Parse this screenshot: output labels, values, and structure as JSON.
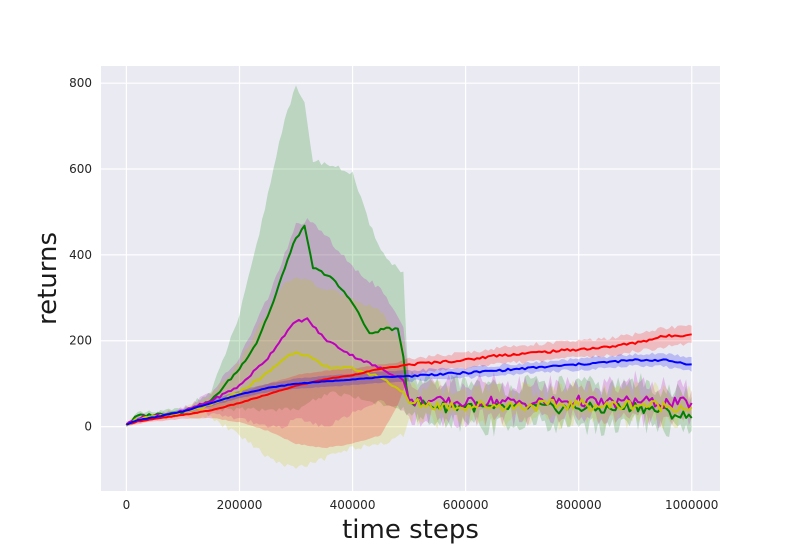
{
  "chart_data": {
    "type": "line",
    "title": "",
    "xlabel": "time steps",
    "ylabel": "returns",
    "xlim": [
      -45000,
      1050000
    ],
    "ylim": [
      -150,
      840
    ],
    "xticks": [
      0,
      200000,
      400000,
      600000,
      800000,
      1000000
    ],
    "xtick_labels": [
      "0",
      "200000",
      "400000",
      "600000",
      "800000",
      "1000000"
    ],
    "yticks": [
      0,
      200,
      400,
      600,
      800
    ],
    "ytick_labels": [
      "0",
      "200",
      "400",
      "600",
      "800"
    ],
    "grid": true,
    "legend": "none",
    "style": {
      "background": "#EAEAF2",
      "grid_color": "#ffffff"
    },
    "series": [
      {
        "color": "#008000",
        "x": [
          0,
          20000,
          50000,
          100000,
          150000,
          200000,
          230000,
          260000,
          280000,
          300000,
          315000,
          330000,
          360000,
          400000,
          430000,
          460000,
          480000,
          490000,
          495000,
          500000,
          520000,
          560000,
          600000,
          650000,
          700000,
          750000,
          800000,
          850000,
          900000,
          950000,
          1000000
        ],
        "y": [
          5,
          25,
          28,
          35,
          60,
          135,
          195,
          290,
          370,
          440,
          465,
          370,
          350,
          290,
          215,
          230,
          225,
          165,
          95,
          60,
          55,
          45,
          50,
          40,
          48,
          42,
          45,
          40,
          48,
          35,
          20
        ],
        "band_upper": [
          10,
          30,
          33,
          42,
          80,
          260,
          420,
          600,
          720,
          790,
          750,
          620,
          610,
          590,
          470,
          390,
          370,
          360,
          200,
          110,
          100,
          95,
          110,
          90,
          100,
          95,
          100,
          90,
          105,
          90,
          70
        ],
        "band_lower": [
          0,
          20,
          23,
          28,
          40,
          40,
          40,
          40,
          40,
          40,
          50,
          60,
          80,
          70,
          60,
          50,
          45,
          40,
          30,
          30,
          20,
          0,
          10,
          0,
          10,
          5,
          5,
          0,
          10,
          0,
          -10
        ]
      },
      {
        "color": "#BF00BF",
        "x": [
          0,
          20000,
          50000,
          100000,
          150000,
          200000,
          250000,
          280000,
          300000,
          320000,
          350000,
          400000,
          450000,
          490000,
          500000,
          550000,
          600000,
          650000,
          700000,
          750000,
          800000,
          850000,
          900000,
          950000,
          1000000
        ],
        "y": [
          5,
          20,
          25,
          35,
          60,
          95,
          160,
          215,
          245,
          250,
          205,
          165,
          135,
          110,
          60,
          58,
          55,
          60,
          55,
          58,
          60,
          55,
          60,
          55,
          55
        ],
        "band_upper": [
          10,
          26,
          31,
          42,
          80,
          160,
          300,
          400,
          470,
          480,
          450,
          370,
          320,
          230,
          110,
          100,
          95,
          105,
          95,
          100,
          100,
          95,
          110,
          95,
          85
        ],
        "band_lower": [
          0,
          14,
          19,
          28,
          30,
          20,
          0,
          0,
          20,
          10,
          0,
          30,
          60,
          40,
          20,
          20,
          20,
          25,
          20,
          20,
          25,
          20,
          20,
          20,
          20
        ]
      },
      {
        "color": "#C8C800",
        "x": [
          0,
          20000,
          50000,
          100000,
          150000,
          200000,
          250000,
          280000,
          300000,
          320000,
          350000,
          400000,
          450000,
          490000,
          500000,
          550000,
          600000,
          650000,
          700000,
          750000,
          800000,
          850000,
          900000,
          950000,
          1000000
        ],
        "y": [
          5,
          18,
          22,
          32,
          50,
          80,
          125,
          160,
          175,
          165,
          140,
          135,
          115,
          80,
          55,
          50,
          48,
          50,
          48,
          50,
          52,
          48,
          52,
          48,
          45
        ],
        "band_upper": [
          10,
          24,
          28,
          40,
          75,
          150,
          270,
          330,
          350,
          340,
          320,
          300,
          270,
          190,
          90,
          85,
          80,
          85,
          80,
          85,
          85,
          80,
          85,
          80,
          75
        ],
        "band_lower": [
          0,
          12,
          16,
          24,
          20,
          -20,
          -70,
          -90,
          -95,
          -90,
          -75,
          -50,
          -40,
          -20,
          20,
          15,
          15,
          15,
          15,
          15,
          15,
          15,
          15,
          15,
          15
        ]
      },
      {
        "color": "#FF0000",
        "x": [
          0,
          20000,
          50000,
          100000,
          150000,
          200000,
          250000,
          300000,
          350000,
          400000,
          450000,
          480000,
          500000,
          550000,
          600000,
          650000,
          700000,
          750000,
          800000,
          850000,
          900000,
          950000,
          1000000
        ],
        "y": [
          5,
          12,
          18,
          27,
          38,
          55,
          75,
          95,
          110,
          120,
          135,
          140,
          145,
          150,
          155,
          165,
          170,
          175,
          180,
          185,
          195,
          210,
          215
        ],
        "band_upper": [
          10,
          18,
          24,
          35,
          55,
          80,
          100,
          120,
          130,
          135,
          145,
          150,
          160,
          165,
          172,
          182,
          190,
          195,
          200,
          205,
          215,
          230,
          235
        ],
        "band_lower": [
          0,
          6,
          12,
          18,
          20,
          10,
          -10,
          -40,
          -50,
          -40,
          -20,
          50,
          120,
          130,
          135,
          145,
          150,
          155,
          160,
          165,
          175,
          185,
          195
        ]
      },
      {
        "color": "#0000FF",
        "x": [
          0,
          20000,
          50000,
          100000,
          150000,
          200000,
          250000,
          300000,
          350000,
          400000,
          450000,
          500000,
          550000,
          600000,
          650000,
          700000,
          750000,
          800000,
          850000,
          900000,
          950000,
          1000000
        ],
        "y": [
          5,
          15,
          22,
          35,
          55,
          75,
          90,
          100,
          105,
          110,
          115,
          118,
          122,
          125,
          130,
          135,
          140,
          145,
          150,
          155,
          155,
          145
        ],
        "band_upper": [
          8,
          18,
          26,
          40,
          62,
          84,
          100,
          112,
          118,
          123,
          128,
          131,
          134,
          137,
          142,
          147,
          152,
          158,
          163,
          168,
          170,
          162
        ],
        "band_lower": [
          2,
          12,
          18,
          30,
          48,
          66,
          80,
          88,
          92,
          97,
          102,
          105,
          110,
          113,
          118,
          123,
          128,
          132,
          137,
          142,
          140,
          128
        ]
      }
    ]
  }
}
